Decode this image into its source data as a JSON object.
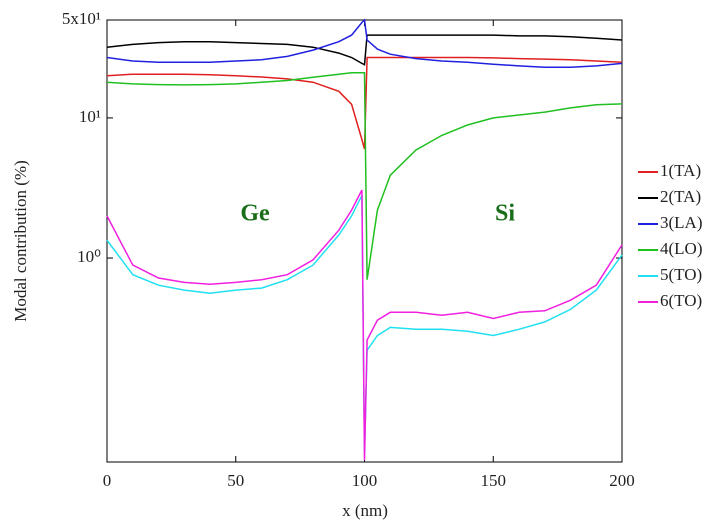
{
  "chart_data": {
    "type": "line",
    "xlabel": "x (nm)",
    "ylabel": "Modal contribution (%)",
    "annotations": [
      "Ge",
      "Si"
    ],
    "ylog": true,
    "legend": "right",
    "xlim": [
      0,
      200
    ],
    "xticks": [
      0,
      50,
      100,
      150,
      200
    ],
    "ylim": [
      0.035,
      50
    ],
    "yticks": [
      {
        "value": 1,
        "label": "10⁰"
      },
      {
        "value": 10,
        "label": "10¹"
      },
      {
        "value": 50,
        "label": "5x10¹"
      }
    ],
    "x": [
      0,
      10,
      20,
      30,
      40,
      50,
      60,
      70,
      80,
      90,
      95,
      99,
      100,
      101,
      105,
      110,
      120,
      130,
      140,
      150,
      160,
      170,
      180,
      190,
      200
    ],
    "series": [
      {
        "name": "1(TA)",
        "color": "#e02020",
        "values": [
          20,
          20.5,
          20.5,
          20.5,
          20.3,
          20,
          19.6,
          19,
          18,
          15.5,
          12.5,
          7,
          6,
          27,
          27,
          27,
          27,
          27,
          27,
          26.8,
          26.5,
          26.3,
          26,
          25.5,
          25
        ]
      },
      {
        "name": "2(TA)",
        "color": "#000000",
        "values": [
          32,
          33.5,
          34.5,
          35,
          35,
          34.5,
          34,
          33.5,
          32,
          29,
          27,
          24.5,
          24,
          39,
          39,
          39,
          39,
          39,
          39,
          39,
          38.5,
          38.5,
          38,
          37,
          36
        ]
      },
      {
        "name": "3(LA)",
        "color": "#2020e0",
        "values": [
          27,
          25.5,
          25,
          25,
          25,
          25.5,
          26,
          27.5,
          30.5,
          35,
          39,
          48,
          50,
          36,
          31,
          28.5,
          26.5,
          25.5,
          25,
          24.2,
          23.5,
          23,
          23,
          23.5,
          24.5
        ]
      },
      {
        "name": "4(LO)",
        "color": "#20c020",
        "values": [
          18,
          17.5,
          17.3,
          17.2,
          17.3,
          17.5,
          18,
          18.5,
          19.5,
          20.5,
          21,
          21,
          21,
          0.7,
          2.2,
          3.9,
          5.9,
          7.5,
          8.9,
          10,
          10.5,
          11,
          11.8,
          12.4,
          12.6
        ]
      },
      {
        "name": "5(TO)",
        "color": "#20e0f0",
        "values": [
          1.34,
          0.76,
          0.64,
          0.59,
          0.56,
          0.59,
          0.61,
          0.7,
          0.89,
          1.46,
          2,
          2.8,
          0.04,
          0.22,
          0.28,
          0.32,
          0.31,
          0.31,
          0.3,
          0.28,
          0.31,
          0.35,
          0.43,
          0.59,
          1.05
        ]
      },
      {
        "name": "6(TO)",
        "color": "#f020e0",
        "values": [
          2,
          0.89,
          0.72,
          0.67,
          0.65,
          0.67,
          0.7,
          0.76,
          0.97,
          1.58,
          2.2,
          3.06,
          0.036,
          0.26,
          0.36,
          0.41,
          0.41,
          0.39,
          0.41,
          0.37,
          0.41,
          0.42,
          0.5,
          0.64,
          1.24
        ]
      }
    ]
  }
}
